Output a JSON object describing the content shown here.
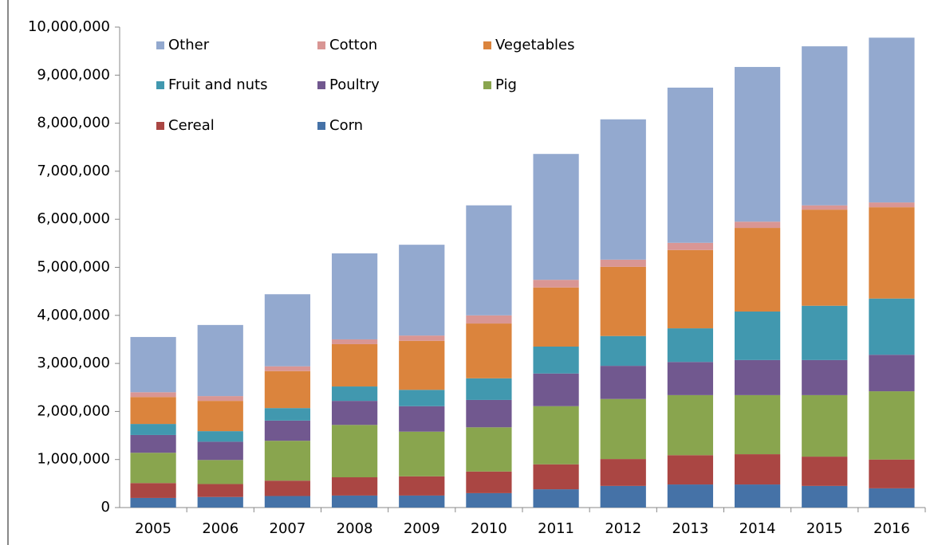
{
  "chart_data": {
    "type": "stacked_bar",
    "categories": [
      "2005",
      "2006",
      "2007",
      "2008",
      "2009",
      "2010",
      "2011",
      "2012",
      "2013",
      "2014",
      "2015",
      "2016"
    ],
    "series": [
      {
        "name": "Corn",
        "color": "#4572a7",
        "values": [
          200000,
          220000,
          240000,
          250000,
          250000,
          300000,
          380000,
          450000,
          480000,
          480000,
          450000,
          400000
        ]
      },
      {
        "name": "Cereal",
        "color": "#aa4643",
        "values": [
          310000,
          270000,
          320000,
          380000,
          400000,
          450000,
          520000,
          560000,
          610000,
          630000,
          610000,
          600000
        ]
      },
      {
        "name": "Pig",
        "color": "#89a54e",
        "values": [
          630000,
          500000,
          830000,
          1090000,
          930000,
          920000,
          1210000,
          1250000,
          1250000,
          1230000,
          1280000,
          1420000
        ]
      },
      {
        "name": "Poultry",
        "color": "#71588f",
        "values": [
          370000,
          380000,
          420000,
          500000,
          530000,
          570000,
          680000,
          690000,
          690000,
          730000,
          730000,
          760000
        ]
      },
      {
        "name": "Fruit and nuts",
        "color": "#4198af",
        "values": [
          230000,
          220000,
          260000,
          300000,
          340000,
          450000,
          560000,
          620000,
          700000,
          1010000,
          1130000,
          1170000
        ]
      },
      {
        "name": "Vegetables",
        "color": "#db843d",
        "values": [
          560000,
          630000,
          770000,
          880000,
          1020000,
          1140000,
          1230000,
          1440000,
          1630000,
          1740000,
          2000000,
          1900000
        ]
      },
      {
        "name": "Cotton",
        "color": "#d99694",
        "values": [
          100000,
          100000,
          100000,
          100000,
          110000,
          170000,
          160000,
          150000,
          150000,
          130000,
          90000,
          100000
        ]
      },
      {
        "name": "Other",
        "color": "#93a9cf",
        "values": [
          1150000,
          1480000,
          1500000,
          1790000,
          1890000,
          2290000,
          2620000,
          2920000,
          3230000,
          3220000,
          3310000,
          3430000
        ]
      }
    ],
    "ylim": [
      0,
      10000000
    ],
    "yticks": [
      0,
      {
        "value": 1000000,
        "label": "1,000,000"
      },
      {
        "value": 2000000,
        "label": "2,000,000"
      },
      {
        "value": 3000000,
        "label": "3,000,000"
      },
      {
        "value": 4000000,
        "label": "4,000,000"
      },
      {
        "value": 5000000,
        "label": "5,000,000"
      },
      {
        "value": 6000000,
        "label": "6,000,000"
      },
      {
        "value": 7000000,
        "label": "7,000,000"
      },
      {
        "value": 8000000,
        "label": "8,000,000"
      },
      {
        "value": 9000000,
        "label": "9,000,000"
      },
      {
        "value": 10000000,
        "label": "10,000,000"
      }
    ],
    "legend": "top-left",
    "legend_order": "reversed",
    "grid": false
  }
}
